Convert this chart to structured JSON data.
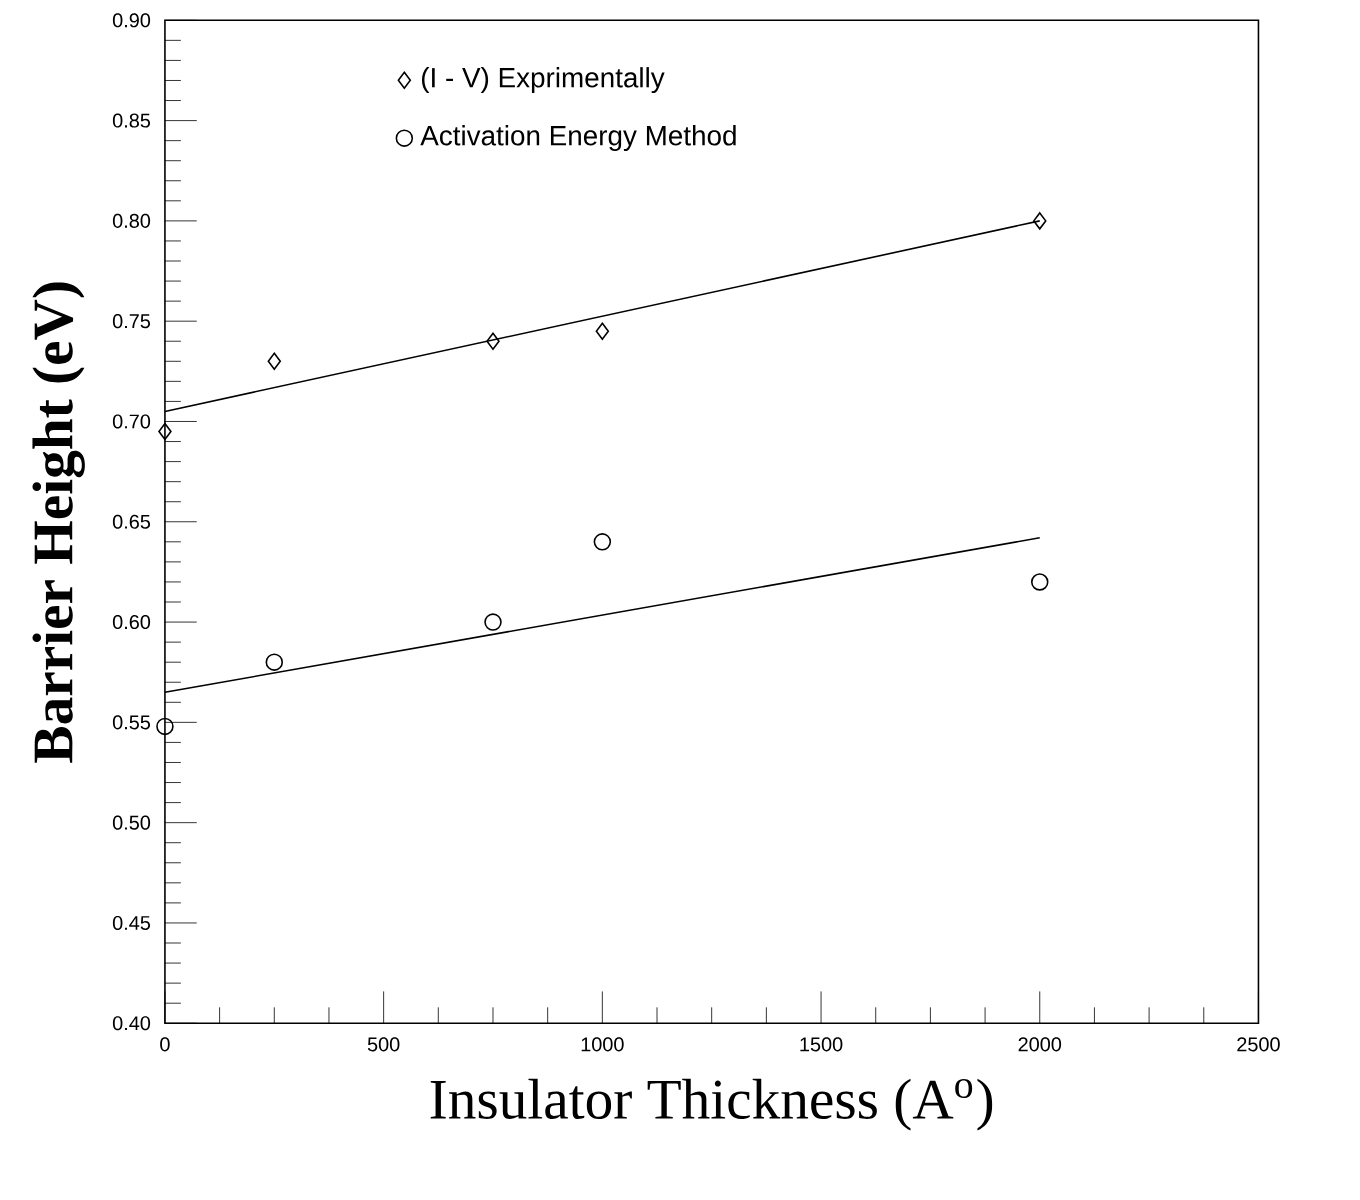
{
  "chart_data": {
    "type": "scatter",
    "xlabel": "Insulator Thickness (A$^{o}$)",
    "ylabel": "Barrier Height (eV)",
    "xlim": [
      0,
      2500
    ],
    "ylim": [
      0.4,
      0.9
    ],
    "xticks": [
      0,
      500,
      1000,
      1500,
      2000,
      2500
    ],
    "yticks": [
      {
        "value": 0.4,
        "label": "0.40"
      },
      {
        "value": 0.45,
        "label": "0.45"
      },
      {
        "value": 0.5,
        "label": "0.50"
      },
      {
        "value": 0.55,
        "label": "0.55"
      },
      {
        "value": 0.6,
        "label": "0.60"
      },
      {
        "value": 0.65,
        "label": "0.65"
      },
      {
        "value": 0.7,
        "label": "0.70"
      },
      {
        "value": 0.75,
        "label": "0.75"
      },
      {
        "value": 0.8,
        "label": "0.80"
      },
      {
        "value": 0.85,
        "label": "0.85"
      },
      {
        "value": 0.9,
        "label": "0.90"
      }
    ],
    "grid": false,
    "legend": "top",
    "series": [
      {
        "name": "(I - V) Exprimentally",
        "marker": "diamond",
        "color": "#000000",
        "x": [
          0,
          250,
          750,
          1000,
          2000
        ],
        "values": [
          0.695,
          0.73,
          0.74,
          0.745,
          0.8
        ]
      },
      {
        "name": "Activation Energy Method",
        "marker": "circle",
        "color": "#000000",
        "x": [
          0,
          250,
          750,
          1000,
          2000
        ],
        "values": [
          0.548,
          0.58,
          0.6,
          0.64,
          0.62
        ]
      },
      {
        "type": "line",
        "marker": "none",
        "line_style": "solid",
        "color": "#000000",
        "x": [
          0,
          2000
        ],
        "values": [
          0.705,
          0.8
        ]
      },
      {
        "type": "line",
        "marker": "none",
        "line_style": "solid",
        "color": "#000000",
        "x": [
          0,
          2000
        ],
        "values": [
          0.565,
          0.642
        ]
      }
    ]
  }
}
